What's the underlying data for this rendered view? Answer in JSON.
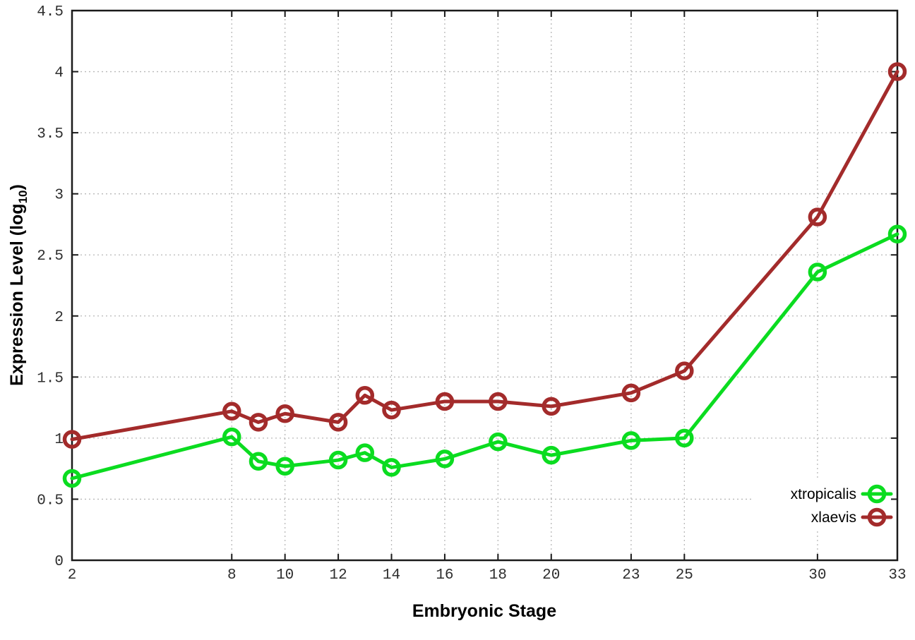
{
  "chart_data": {
    "type": "line",
    "title": "",
    "xlabel": "Embryonic Stage",
    "ylabel": {
      "main": "Expression Level (log",
      "sub": "10",
      "end": ")"
    },
    "x": [
      2,
      8,
      9,
      10,
      12,
      13,
      14,
      16,
      18,
      20,
      23,
      25,
      30,
      33
    ],
    "series": [
      {
        "name": "xtropicalis",
        "color": "#0bdc20",
        "values": [
          0.67,
          1.01,
          0.81,
          0.77,
          0.82,
          0.88,
          0.76,
          0.83,
          0.97,
          0.86,
          0.98,
          1.0,
          2.36,
          2.67
        ]
      },
      {
        "name": "xlaevis",
        "color": "#a32b2b",
        "values": [
          0.99,
          1.22,
          1.13,
          1.2,
          1.13,
          1.35,
          1.23,
          1.3,
          1.3,
          1.26,
          1.37,
          1.55,
          2.81,
          4.0
        ]
      }
    ],
    "xlim": [
      2,
      33
    ],
    "ylim": [
      0,
      4.5
    ],
    "xticks": [
      [
        2,
        "2"
      ],
      [
        8,
        "8"
      ],
      [
        10,
        "10"
      ],
      [
        12,
        "12"
      ],
      [
        14,
        "14"
      ],
      [
        16,
        "16"
      ],
      [
        18,
        "18"
      ],
      [
        20,
        "20"
      ],
      [
        23,
        "23"
      ],
      [
        25,
        "25"
      ],
      [
        30,
        "30"
      ],
      [
        33,
        "33"
      ]
    ],
    "yticks": [
      [
        0,
        "0"
      ],
      [
        0.5,
        "0.5"
      ],
      [
        1,
        "1"
      ],
      [
        1.5,
        "1.5"
      ],
      [
        2,
        "2"
      ],
      [
        2.5,
        "2.5"
      ],
      [
        3,
        "3"
      ],
      [
        3.5,
        "3.5"
      ],
      [
        4,
        "4"
      ],
      [
        4.5,
        "4.5"
      ]
    ],
    "grid": true,
    "legend_position": "inside-right-lower",
    "legend": [
      "xtropicalis",
      "xlaevis"
    ],
    "marker": "open-circle"
  },
  "colors": {
    "axis": "#1a1a1a",
    "grid": "#b8b8b8",
    "tick_label": "#2e2e2e",
    "background": "#ffffff"
  }
}
